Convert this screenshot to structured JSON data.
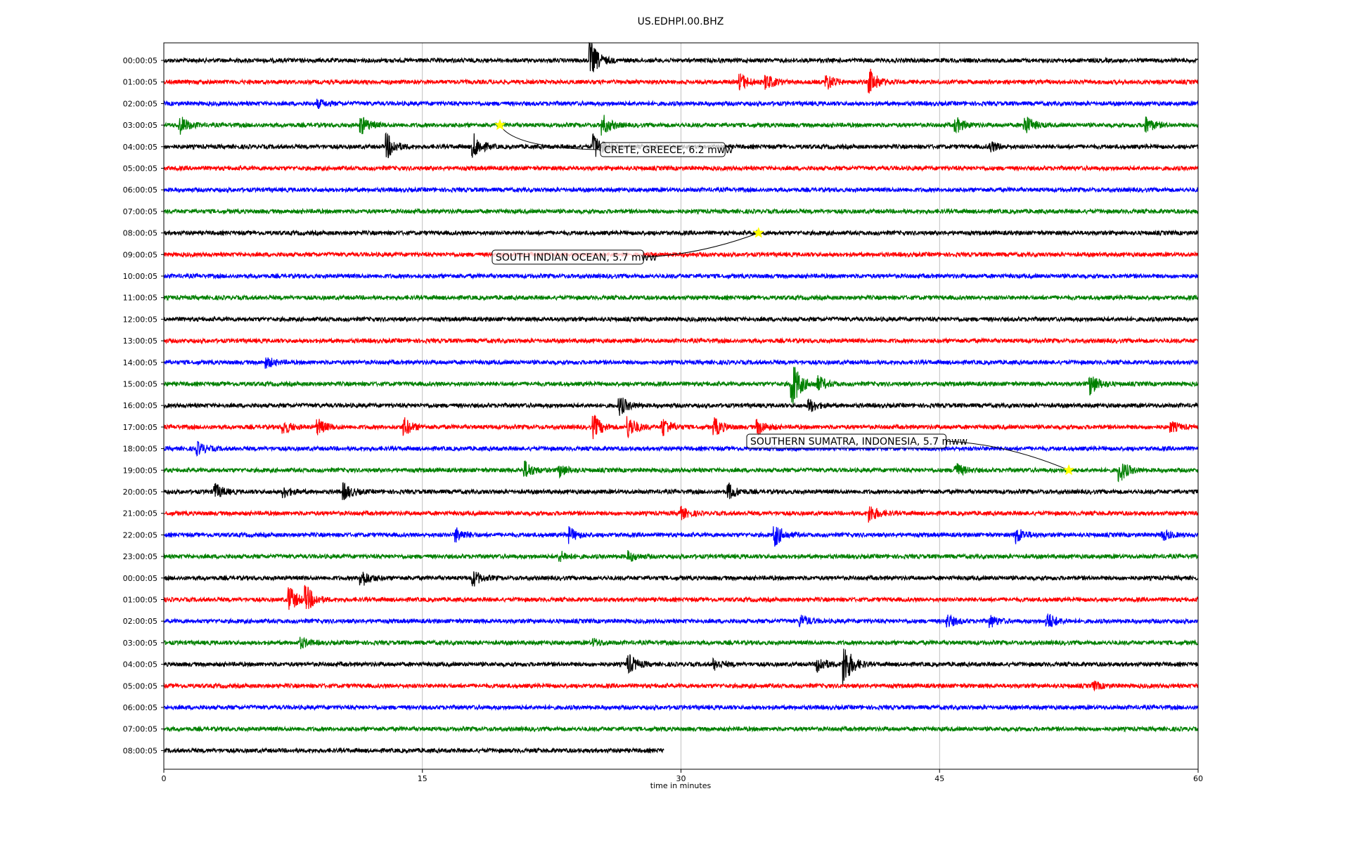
{
  "chart_data": {
    "type": "line",
    "title": "US.EDHPI.00.BHZ",
    "xlabel": "time in minutes",
    "ylabel": "",
    "xlim": [
      0,
      60
    ],
    "x_ticks": [
      "0",
      "15",
      "30",
      "45",
      "60"
    ],
    "x_gridlines": [
      15,
      30,
      45
    ],
    "grid": "vertical only",
    "trace_colors": [
      "#000000",
      "#ff0000",
      "#0000ff",
      "#008000"
    ],
    "rows": [
      "00:00:05",
      "01:00:05",
      "02:00:05",
      "03:00:05",
      "04:00:05",
      "05:00:05",
      "06:00:05",
      "07:00:05",
      "08:00:05",
      "09:00:05",
      "10:00:05",
      "11:00:05",
      "12:00:05",
      "13:00:05",
      "14:00:05",
      "15:00:05",
      "16:00:05",
      "17:00:05",
      "18:00:05",
      "19:00:05",
      "20:00:05",
      "21:00:05",
      "22:00:05",
      "23:00:05",
      "00:00:05",
      "01:00:05",
      "02:00:05",
      "03:00:05",
      "04:00:05",
      "05:00:05",
      "06:00:05",
      "07:00:05",
      "08:00:05"
    ],
    "last_row_end_minute": 29,
    "events": [
      {
        "label": "CRETE, GREECE, 6.2 mww",
        "row": 3,
        "minute": 19.5,
        "marker_color": "#ffff00"
      },
      {
        "label": "SOUTH INDIAN OCEAN, 5.7 mww",
        "row": 8,
        "minute": 34.5,
        "marker_color": "#ffff00"
      },
      {
        "label": "SOUTHERN SUMATRA, INDONESIA, 5.7 mww",
        "row": 19,
        "minute": 52.5,
        "marker_color": "#ffff00"
      }
    ],
    "bursts": [
      {
        "row": 0,
        "minute": 24.8,
        "amp": 3.0
      },
      {
        "row": 1,
        "minute": 33.5,
        "amp": 1.3
      },
      {
        "row": 1,
        "minute": 35,
        "amp": 1.2
      },
      {
        "row": 1,
        "minute": 38.5,
        "amp": 1.2
      },
      {
        "row": 1,
        "minute": 41,
        "amp": 2.0
      },
      {
        "row": 2,
        "minute": 9,
        "amp": 0.6
      },
      {
        "row": 3,
        "minute": 1,
        "amp": 1.4
      },
      {
        "row": 3,
        "minute": 11.5,
        "amp": 1.4
      },
      {
        "row": 3,
        "minute": 25.5,
        "amp": 1.6
      },
      {
        "row": 3,
        "minute": 46,
        "amp": 1.2
      },
      {
        "row": 3,
        "minute": 50,
        "amp": 1.6
      },
      {
        "row": 3,
        "minute": 57,
        "amp": 1.3
      },
      {
        "row": 4,
        "minute": 13,
        "amp": 2.0
      },
      {
        "row": 4,
        "minute": 18,
        "amp": 2.0
      },
      {
        "row": 4,
        "minute": 25,
        "amp": 2.0
      },
      {
        "row": 4,
        "minute": 48,
        "amp": 0.8
      },
      {
        "row": 14,
        "minute": 6,
        "amp": 0.8
      },
      {
        "row": 15,
        "minute": 36.5,
        "amp": 4.0
      },
      {
        "row": 15,
        "minute": 38,
        "amp": 1.2
      },
      {
        "row": 15,
        "minute": 53.8,
        "amp": 1.8
      },
      {
        "row": 16,
        "minute": 26.5,
        "amp": 1.5
      },
      {
        "row": 16,
        "minute": 37.5,
        "amp": 1.0
      },
      {
        "row": 17,
        "minute": 7,
        "amp": 1.0
      },
      {
        "row": 17,
        "minute": 9,
        "amp": 1.2
      },
      {
        "row": 17,
        "minute": 14,
        "amp": 1.4
      },
      {
        "row": 17,
        "minute": 25,
        "amp": 1.8
      },
      {
        "row": 17,
        "minute": 27,
        "amp": 1.8
      },
      {
        "row": 17,
        "minute": 29,
        "amp": 1.5
      },
      {
        "row": 17,
        "minute": 32,
        "amp": 1.4
      },
      {
        "row": 17,
        "minute": 34.5,
        "amp": 1.2
      },
      {
        "row": 17,
        "minute": 58.5,
        "amp": 0.8
      },
      {
        "row": 18,
        "minute": 2,
        "amp": 1.0
      },
      {
        "row": 19,
        "minute": 21,
        "amp": 1.4
      },
      {
        "row": 19,
        "minute": 23,
        "amp": 1.0
      },
      {
        "row": 19,
        "minute": 46,
        "amp": 1.1
      },
      {
        "row": 19,
        "minute": 55.5,
        "amp": 1.8
      },
      {
        "row": 20,
        "minute": 3,
        "amp": 1.3
      },
      {
        "row": 20,
        "minute": 7,
        "amp": 0.8
      },
      {
        "row": 20,
        "minute": 10.5,
        "amp": 1.3
      },
      {
        "row": 20,
        "minute": 32.8,
        "amp": 1.3
      },
      {
        "row": 21,
        "minute": 30,
        "amp": 1.0
      },
      {
        "row": 21,
        "minute": 41,
        "amp": 1.4
      },
      {
        "row": 22,
        "minute": 17,
        "amp": 1.1
      },
      {
        "row": 22,
        "minute": 23.5,
        "amp": 1.3
      },
      {
        "row": 22,
        "minute": 35.5,
        "amp": 1.8
      },
      {
        "row": 22,
        "minute": 49.5,
        "amp": 1.3
      },
      {
        "row": 22,
        "minute": 58,
        "amp": 0.8
      },
      {
        "row": 23,
        "minute": 23,
        "amp": 0.8
      },
      {
        "row": 23,
        "minute": 27,
        "amp": 0.8
      },
      {
        "row": 24,
        "minute": 11.5,
        "amp": 1.4
      },
      {
        "row": 24,
        "minute": 18,
        "amp": 1.2
      },
      {
        "row": 25,
        "minute": 7.3,
        "amp": 2.2
      },
      {
        "row": 25,
        "minute": 8.3,
        "amp": 2.2
      },
      {
        "row": 26,
        "minute": 37,
        "amp": 1.0
      },
      {
        "row": 26,
        "minute": 45.5,
        "amp": 1.0
      },
      {
        "row": 26,
        "minute": 48,
        "amp": 0.9
      },
      {
        "row": 26,
        "minute": 51.3,
        "amp": 1.4
      },
      {
        "row": 27,
        "minute": 8,
        "amp": 0.8
      },
      {
        "row": 27,
        "minute": 25,
        "amp": 0.5
      },
      {
        "row": 28,
        "minute": 27,
        "amp": 1.6
      },
      {
        "row": 28,
        "minute": 32,
        "amp": 0.8
      },
      {
        "row": 28,
        "minute": 38,
        "amp": 1.3
      },
      {
        "row": 28,
        "minute": 39.5,
        "amp": 3.6
      },
      {
        "row": 29,
        "minute": 54,
        "amp": 0.6
      }
    ]
  }
}
